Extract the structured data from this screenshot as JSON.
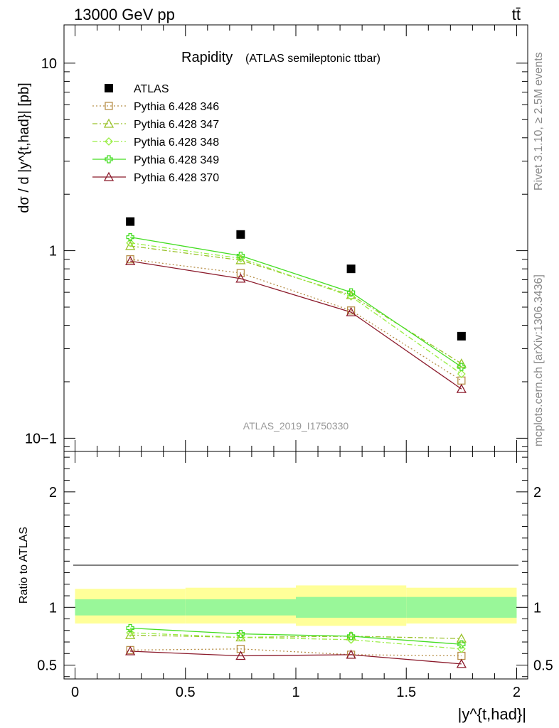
{
  "header": {
    "energy_label": "13000 GeV pp",
    "process_label": "tt̄"
  },
  "side_labels": {
    "rivet": "Rivet 3.1.10, ≥ 2.5M events",
    "mcplots": "mcplots.cern.ch [arXiv:1306.3436]"
  },
  "chart_data": [
    {
      "type": "scatter",
      "title": "Rapidity",
      "subtitle": "(ATLAS semileptonic ttbar)",
      "watermark": "ATLAS_2019_I1750330",
      "ylabel": "dσ / d |y^{t,had}| [pb]",
      "xlabel": "|y^{t,had}|",
      "yscale": "log",
      "xlim": [
        -0.05,
        2.05
      ],
      "ylim": [
        0.085,
        16
      ],
      "y_tick_labels": [
        "10−1",
        "1",
        "10"
      ],
      "legend_position": "top-left",
      "x": [
        0.25,
        0.75,
        1.25,
        1.75
      ],
      "series": [
        {
          "name": "ATLAS",
          "color": "#000000",
          "marker": "square-filled",
          "values": [
            1.43,
            1.22,
            0.8,
            0.35
          ]
        },
        {
          "name": "Pythia 6.428 346",
          "color": "#b8904a",
          "marker": "square-open",
          "line": "dotted",
          "values": [
            0.9,
            0.76,
            0.48,
            0.203
          ]
        },
        {
          "name": "Pythia 6.428 347",
          "color": "#9ac22b",
          "marker": "triangle-open",
          "line": "dashdot",
          "values": [
            1.06,
            0.89,
            0.58,
            0.25
          ]
        },
        {
          "name": "Pythia 6.428 348",
          "color": "#99ee44",
          "marker": "diamond-open",
          "line": "dashdot",
          "values": [
            1.1,
            0.91,
            0.57,
            0.22
          ]
        },
        {
          "name": "Pythia 6.428 349",
          "color": "#44dd22",
          "marker": "cross-open",
          "line": "solid",
          "values": [
            1.18,
            0.94,
            0.6,
            0.24
          ]
        },
        {
          "name": "Pythia 6.428 370",
          "color": "#8b1a2b",
          "marker": "triangle-open",
          "line": "solid",
          "values": [
            0.88,
            0.71,
            0.47,
            0.183
          ]
        }
      ]
    },
    {
      "type": "scatter",
      "ylabel": "Ratio to ATLAS",
      "xlabel": "|y^{t,had}|",
      "xlim": [
        -0.05,
        2.05
      ],
      "ylim": [
        0.38,
        2.35
      ],
      "x_tick_labels": [
        "0",
        "0.5",
        "1",
        "1.5",
        "2"
      ],
      "y_tick_labels": [
        "0.5",
        "1",
        "2"
      ],
      "bands": {
        "bins": [
          [
            0,
            0.5
          ],
          [
            0.5,
            1.0
          ],
          [
            1.0,
            1.5
          ],
          [
            1.5,
            2.0
          ]
        ],
        "stat_color": "#99f799",
        "total_color": "#ffff99",
        "stat": [
          [
            0.93,
            1.07
          ],
          [
            0.93,
            1.07
          ],
          [
            0.91,
            1.09
          ],
          [
            0.91,
            1.09
          ]
        ],
        "total": [
          [
            0.86,
            1.16
          ],
          [
            0.86,
            1.17
          ],
          [
            0.84,
            1.19
          ],
          [
            0.86,
            1.17
          ]
        ]
      },
      "x": [
        0.25,
        0.75,
        1.25,
        1.75
      ],
      "series": [
        {
          "name": "Pythia 6.428 346",
          "values": [
            0.63,
            0.64,
            0.59,
            0.58
          ]
        },
        {
          "name": "Pythia 6.428 347",
          "values": [
            0.76,
            0.74,
            0.75,
            0.73
          ]
        },
        {
          "name": "Pythia 6.428 348",
          "values": [
            0.78,
            0.74,
            0.72,
            0.64
          ]
        },
        {
          "name": "Pythia 6.428 349",
          "values": [
            0.82,
            0.77,
            0.75,
            0.68
          ]
        },
        {
          "name": "Pythia 6.428 370",
          "values": [
            0.62,
            0.58,
            0.59,
            0.51
          ]
        }
      ]
    }
  ]
}
